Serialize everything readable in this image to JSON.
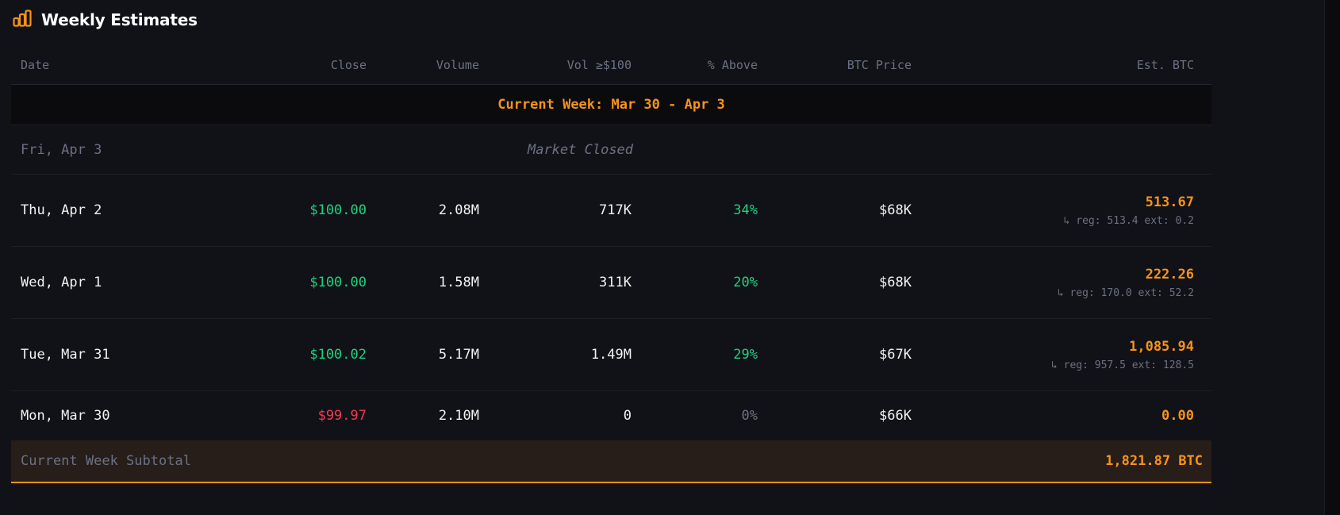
{
  "header": {
    "title": "Weekly Estimates",
    "icon": "bar-chart-icon",
    "accent": "#f7931a"
  },
  "columns": [
    "Date",
    "Close",
    "Volume",
    "Vol ≥$100",
    "% Above",
    "BTC Price",
    "Est. BTC"
  ],
  "week_label": "Current Week: Mar 30 - Apr 3",
  "closed_row": {
    "date": "Fri, Apr 3",
    "status": "Market Closed"
  },
  "rows": [
    {
      "date": "Thu, Apr 2",
      "close": "$100.00",
      "volume": "2.08M",
      "vol_above": "717K",
      "pct_above": "34%",
      "btc_price": "$68K",
      "est_btc": "513.67",
      "detail": "↳ reg: 513.4 ext: 0.2"
    },
    {
      "date": "Wed, Apr 1",
      "close": "$100.00",
      "volume": "1.58M",
      "vol_above": "311K",
      "pct_above": "20%",
      "btc_price": "$68K",
      "est_btc": "222.26",
      "detail": "↳ reg: 170.0 ext: 52.2"
    },
    {
      "date": "Tue, Mar 31",
      "close": "$100.02",
      "volume": "5.17M",
      "vol_above": "1.49M",
      "pct_above": "29%",
      "btc_price": "$67K",
      "est_btc": "1,085.94",
      "detail": "↳ reg: 957.5 ext: 128.5"
    },
    {
      "date": "Mon, Mar 30",
      "close": "$99.97",
      "volume": "2.10M",
      "vol_above": "0",
      "pct_above": "0%",
      "btc_price": "$66K",
      "est_btc": "0.00"
    }
  ],
  "subtotal": {
    "label": "Current Week Subtotal",
    "value": "1,821.87 BTC"
  }
}
